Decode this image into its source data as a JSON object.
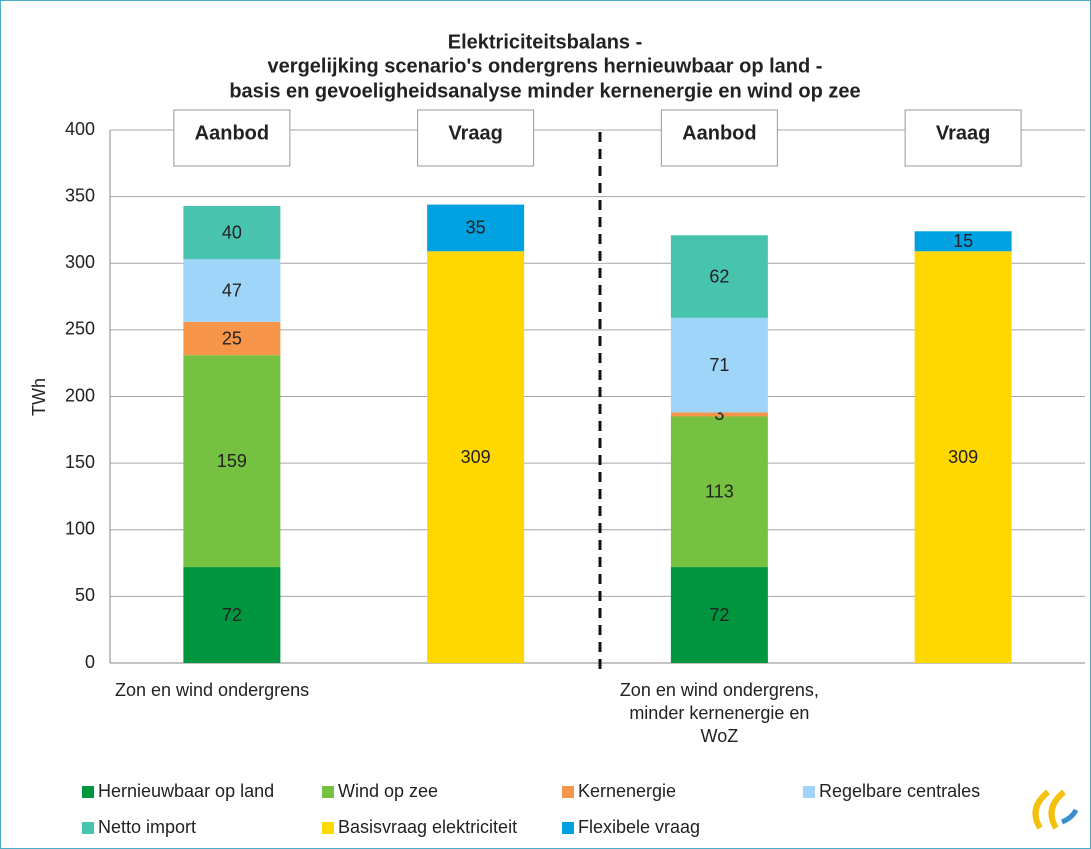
{
  "chart_data": {
    "type": "stacked_bar",
    "title": [
      "Elektriciteitsbalans -",
      "vergelijking scenario's ondergrens hernieuwbaar op land -",
      "basis en gevoeligheidsanalyse minder kernenergie en wind op zee"
    ],
    "ylabel": "TWh",
    "categories": [
      "Zon en wind ondergrens",
      null,
      "Zon en wind ondergrens, minder kernenergie en WoZ",
      null
    ],
    "bar_labels": [
      "Aanbod",
      "Vraag",
      "Aanbod",
      "Vraag"
    ],
    "series": [
      {
        "name": "Hernieuwbaar op land",
        "color": "#00963f",
        "values": [
          72,
          null,
          72,
          null
        ]
      },
      {
        "name": "Wind op zee",
        "color": "#76c142",
        "values": [
          159,
          null,
          113,
          null
        ]
      },
      {
        "name": "Kernenergie",
        "color": "#f7964a",
        "values": [
          25,
          null,
          3,
          null
        ]
      },
      {
        "name": "Regelbare centrales",
        "color": "#9ed5f8",
        "values": [
          47,
          null,
          71,
          null
        ]
      },
      {
        "name": "Netto import",
        "color": "#48c3ae",
        "values": [
          40,
          null,
          62,
          null
        ]
      },
      {
        "name": "Basisvraag elektriciteit",
        "color": "#ffd800",
        "values": [
          null,
          309,
          null,
          309
        ]
      },
      {
        "name": "Flexibele vraag",
        "color": "#00a0e1",
        "values": [
          null,
          35,
          null,
          15
        ]
      }
    ],
    "ylim": [
      0,
      400
    ],
    "yticks": [
      0,
      50,
      100,
      150,
      200,
      250,
      300,
      350,
      400
    ],
    "grid": true
  }
}
